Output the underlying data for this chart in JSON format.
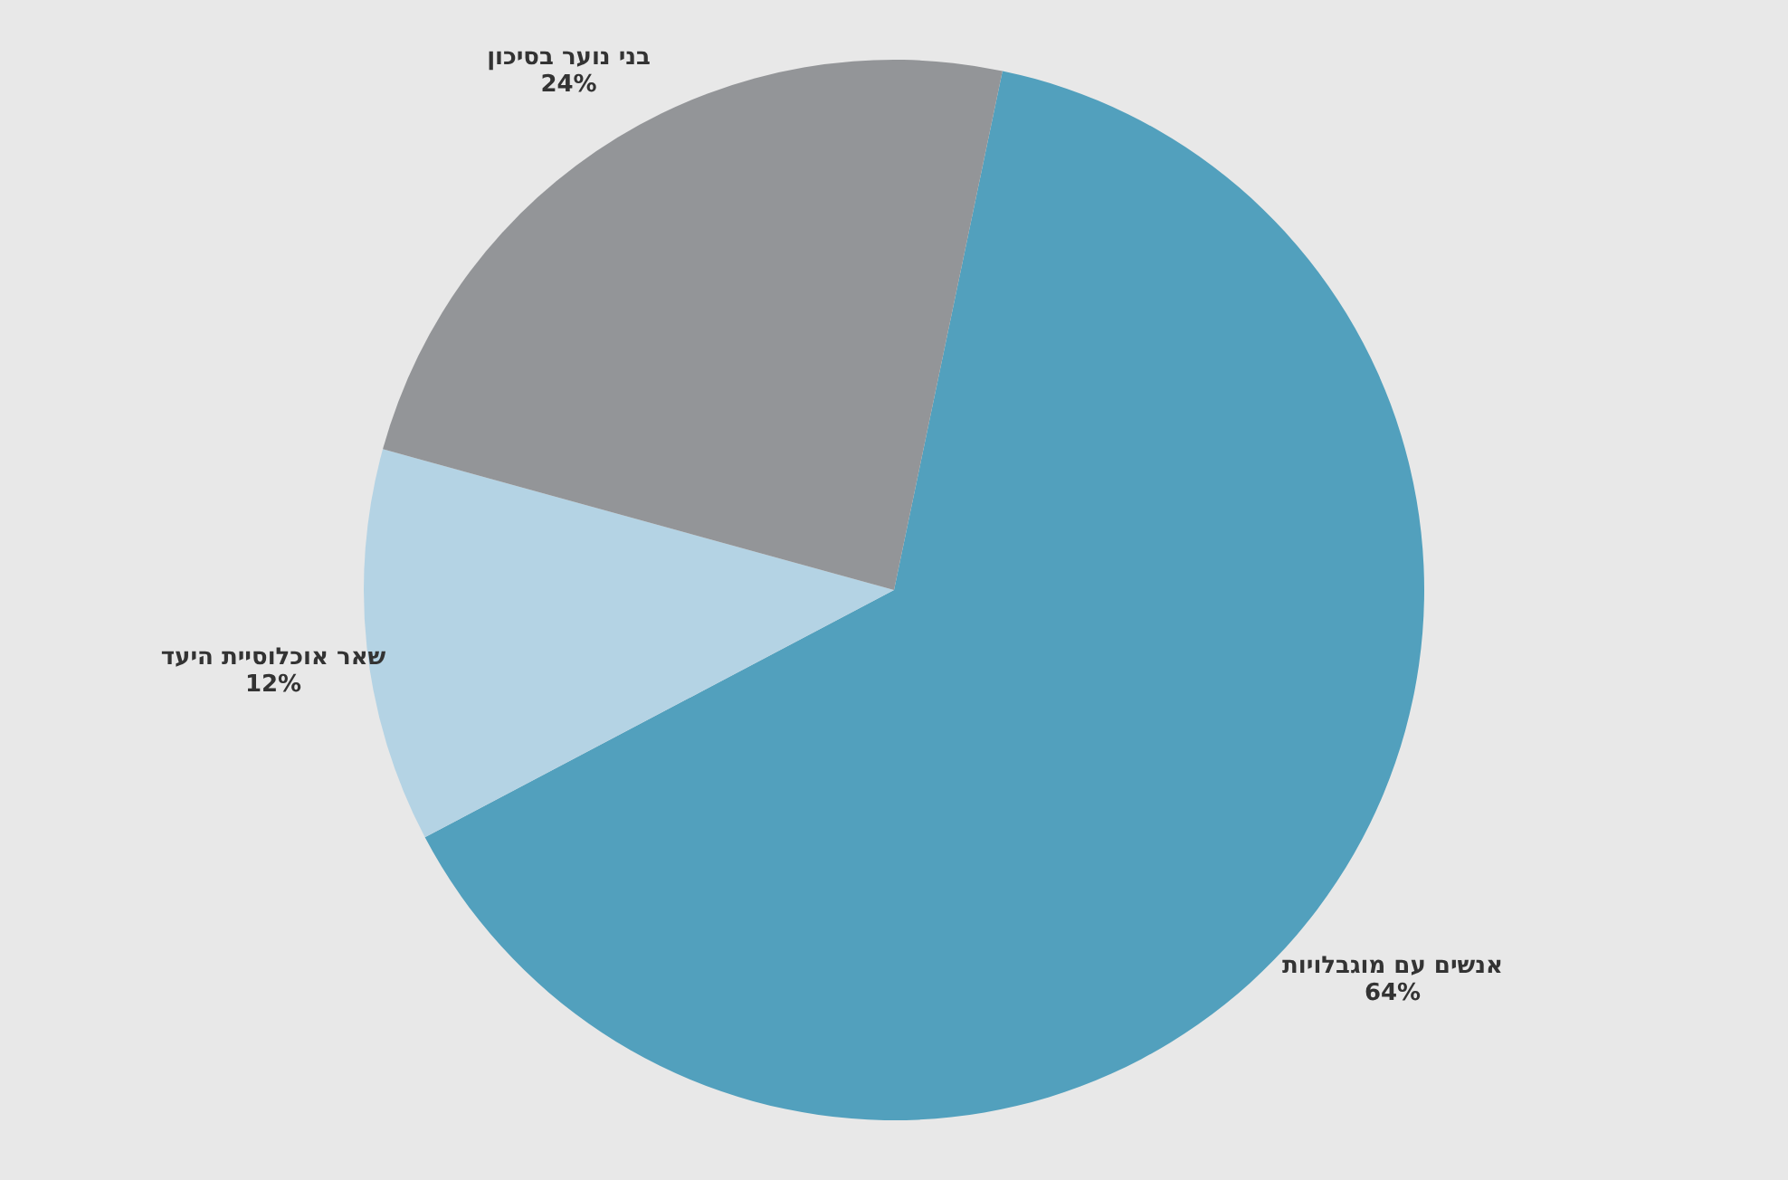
{
  "chart_data": {
    "type": "pie",
    "categories": [
      "אנשים עם מוגבלויות",
      "שאר אוכלוסיית היעד",
      "בני נוער בסיכון"
    ],
    "values": [
      64,
      12,
      24
    ],
    "value_labels": [
      "64%",
      "12%",
      "24%"
    ],
    "colors": [
      "#52a0bd",
      "#b4d3e4",
      "#939598"
    ]
  }
}
